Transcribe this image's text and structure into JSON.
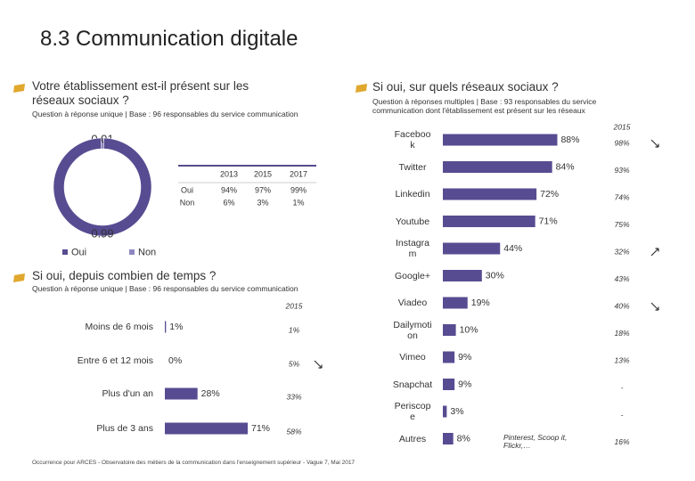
{
  "title": "8.3 Communication digitale",
  "footer": "Occurrence pour ARCES - Observatoire des métiers de la communication dans l'enseignement supérieur - Vague 7, Mai 2017",
  "table": {
    "columns": [
      "2013",
      "2015",
      "2017"
    ],
    "rows": [
      {
        "label": "Oui",
        "cells": [
          "94%",
          "97%",
          "99%"
        ]
      },
      {
        "label": "Non",
        "cells": [
          "6%",
          "3%",
          "1%"
        ]
      }
    ]
  },
  "chart_data": [
    {
      "type": "donut",
      "title": "Votre établissement est-il présent sur les réseaux sociaux ?",
      "subtitle": "Question à réponse unique | Base : 96 responsables du service communication",
      "categories": [
        "Oui",
        "Non"
      ],
      "values": [
        0.99,
        0.01
      ],
      "colors": [
        "#574c91",
        "#8f87c2"
      ]
    },
    {
      "type": "hbar",
      "title": "Si oui, depuis combien de temps ?",
      "subtitle": "Question à réponse unique | Base : 96 responsables du service communication",
      "categories": [
        "Moins de 6 mois",
        "Entre 6 et 12 mois",
        "Plus d'un an",
        "Plus de 3 ans"
      ],
      "values": [
        1,
        0,
        28,
        71
      ],
      "value_labels": [
        "1%",
        "0%",
        "28%",
        "71%"
      ],
      "xlim": [
        0,
        100
      ],
      "color": "#574c91",
      "comparison": {
        "name": "2015",
        "labels": [
          "1%",
          "5%",
          "33%",
          "58%"
        ]
      },
      "trends": [
        null,
        "down",
        null,
        null
      ]
    },
    {
      "type": "hbar",
      "title": "Si oui, sur quels réseaux sociaux ?",
      "subtitle": "Question à réponses multiples | Base : 93 responsables du service communication dont l'établissement est présent sur les réseaux",
      "categories": [
        "Facebook",
        "Twitter",
        "Linkedin",
        "Youtube",
        "Instagram",
        "Google+",
        "Viadeo",
        "Dailymotion",
        "Vimeo",
        "Snapchat",
        "Periscope",
        "Autres"
      ],
      "values": [
        88,
        84,
        72,
        71,
        44,
        30,
        19,
        10,
        9,
        9,
        3,
        8
      ],
      "value_labels": [
        "88%",
        "84%",
        "72%",
        "71%",
        "44%",
        "30%",
        "19%",
        "10%",
        "9%",
        "9%",
        "3%",
        "8%"
      ],
      "xlim": [
        0,
        100
      ],
      "color": "#574c91",
      "comparison": {
        "name": "2015",
        "labels": [
          "98%",
          "93%",
          "74%",
          "75%",
          "32%",
          "43%",
          "40%",
          "18%",
          "13%",
          "-",
          "-",
          "16%"
        ]
      },
      "trends": [
        "down",
        null,
        null,
        null,
        "up",
        null,
        "down",
        null,
        null,
        null,
        null,
        null
      ],
      "annotation": "Pinterest, Scoop it, Flickr,…"
    }
  ]
}
